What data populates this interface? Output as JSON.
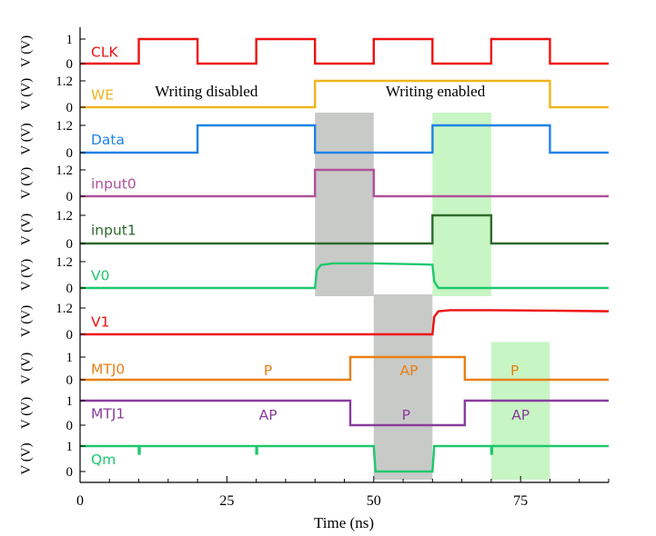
{
  "chart_data": {
    "type": "line",
    "title": "",
    "xlabel": "Time (ns)",
    "ylabel": "V (V)",
    "xlim": [
      0,
      90
    ],
    "x_ticks": [
      0,
      25,
      50,
      75
    ],
    "grid": false,
    "legend": "none",
    "shaded_regions": [
      {
        "name": "gray",
        "color": "#c8cac8",
        "x": [
          40,
          50
        ],
        "rows": [
          "Data",
          "input0",
          "V0"
        ]
      },
      {
        "name": "gray",
        "color": "#c8cac8",
        "x": [
          50,
          60
        ],
        "rows": [
          "V1",
          "MTJ0",
          "MTJ1",
          "Qm"
        ]
      },
      {
        "name": "green",
        "color": "#c8f5c4",
        "x": [
          60,
          70
        ],
        "rows": [
          "Data",
          "input1",
          "V0"
        ]
      },
      {
        "name": "green",
        "color": "#c8f5c4",
        "x": [
          70,
          80
        ],
        "rows": [
          "MTJ0",
          "MTJ1",
          "Qm"
        ]
      }
    ],
    "series": [
      {
        "name": "CLK",
        "color": "#ee1111",
        "ymin": 0,
        "ymax": 1,
        "yticks": [
          "0",
          "1"
        ],
        "points": [
          [
            0,
            0
          ],
          [
            10,
            0
          ],
          [
            10,
            1
          ],
          [
            20,
            1
          ],
          [
            20,
            0
          ],
          [
            30,
            0
          ],
          [
            30,
            1
          ],
          [
            40,
            1
          ],
          [
            40,
            0
          ],
          [
            50,
            0
          ],
          [
            50,
            1
          ],
          [
            60,
            1
          ],
          [
            60,
            0
          ],
          [
            70,
            0
          ],
          [
            70,
            1
          ],
          [
            80,
            1
          ],
          [
            80,
            0
          ],
          [
            90,
            0
          ]
        ],
        "annotations": []
      },
      {
        "name": "WE",
        "color": "#f0b41e",
        "ymin": 0,
        "ymax": 1.2,
        "yticks": [
          "0",
          "1.2"
        ],
        "points": [
          [
            0,
            0
          ],
          [
            40,
            0
          ],
          [
            40,
            1.2
          ],
          [
            80,
            1.2
          ],
          [
            80,
            0
          ],
          [
            90,
            0
          ]
        ],
        "annotations": [
          {
            "text": "Writing disabled",
            "x": 21.5,
            "y": 0.75,
            "color": "#000000",
            "serif": true
          },
          {
            "text": "Writing enabled",
            "x": 60.5,
            "y": 0.75,
            "color": "#000000",
            "serif": true
          }
        ]
      },
      {
        "name": "Data",
        "color": "#1e82e6",
        "ymin": 0,
        "ymax": 1.2,
        "yticks": [
          "0",
          "1.2"
        ],
        "points": [
          [
            0,
            0
          ],
          [
            20,
            0
          ],
          [
            20,
            1.2
          ],
          [
            40,
            1.2
          ],
          [
            40,
            0
          ],
          [
            60,
            0
          ],
          [
            60,
            1.2
          ],
          [
            80,
            1.2
          ],
          [
            80,
            0
          ],
          [
            90,
            0
          ]
        ],
        "annotations": []
      },
      {
        "name": "input0",
        "color": "#b0509a",
        "ymin": 0,
        "ymax": 1.2,
        "yticks": [
          "0",
          "1.2"
        ],
        "points": [
          [
            0,
            0
          ],
          [
            40,
            0
          ],
          [
            40,
            1.2
          ],
          [
            50,
            1.2
          ],
          [
            50,
            0
          ],
          [
            90,
            0
          ]
        ],
        "annotations": []
      },
      {
        "name": "input1",
        "color": "#2e6a2e",
        "ymin": 0,
        "ymax": 1.2,
        "yticks": [
          "0",
          "1.2"
        ],
        "points": [
          [
            0,
            0
          ],
          [
            60,
            0
          ],
          [
            60,
            1.2
          ],
          [
            70,
            1.2
          ],
          [
            70,
            0
          ],
          [
            90,
            0
          ]
        ],
        "annotations": []
      },
      {
        "name": "V0",
        "color": "#1ec86e",
        "ymin": 0,
        "ymax": 1.2,
        "yticks": [
          "0",
          "1.2"
        ],
        "points": [
          [
            0,
            0
          ],
          [
            40,
            0
          ],
          [
            40.3,
            0.8
          ],
          [
            41,
            1.05
          ],
          [
            43,
            1.12
          ],
          [
            50,
            1.12
          ],
          [
            58,
            1.08
          ],
          [
            60,
            1.06
          ],
          [
            60.3,
            0.3
          ],
          [
            61,
            0
          ],
          [
            90,
            0
          ]
        ],
        "annotations": []
      },
      {
        "name": "V1",
        "color": "#ee1111",
        "ymin": 0,
        "ymax": 1.2,
        "yticks": [
          "0",
          "1.2"
        ],
        "points": [
          [
            0,
            0
          ],
          [
            60,
            0
          ],
          [
            60.3,
            0.8
          ],
          [
            61,
            1.05
          ],
          [
            63,
            1.1
          ],
          [
            70,
            1.1
          ],
          [
            80,
            1.08
          ],
          [
            90,
            1.05
          ]
        ],
        "annotations": []
      },
      {
        "name": "MTJ0",
        "color": "#e87f12",
        "ymin": 0,
        "ymax": 1,
        "yticks": [
          "0",
          "1"
        ],
        "points": [
          [
            0,
            0
          ],
          [
            46,
            0
          ],
          [
            46,
            1
          ],
          [
            65.5,
            1
          ],
          [
            65.5,
            0
          ],
          [
            90,
            0
          ]
        ],
        "annotations": [
          {
            "text": "P",
            "x": 32,
            "y": 0.45,
            "color": "#e87f12"
          },
          {
            "text": "AP",
            "x": 56,
            "y": 0.45,
            "color": "#e87f12"
          },
          {
            "text": "P",
            "x": 74,
            "y": 0.45,
            "color": "#e87f12"
          }
        ]
      },
      {
        "name": "MTJ1",
        "color": "#8a3c9e",
        "ymin": 0,
        "ymax": 1,
        "yticks": [
          "0",
          "1"
        ],
        "points": [
          [
            0,
            1
          ],
          [
            46,
            1
          ],
          [
            46,
            0
          ],
          [
            65.5,
            0
          ],
          [
            65.5,
            1
          ],
          [
            90,
            1
          ]
        ],
        "annotations": [
          {
            "text": "AP",
            "x": 32,
            "y": 0.45,
            "color": "#8a3c9e"
          },
          {
            "text": "P",
            "x": 55.5,
            "y": 0.45,
            "color": "#8a3c9e"
          },
          {
            "text": "AP",
            "x": 75,
            "y": 0.45,
            "color": "#8a3c9e"
          }
        ]
      },
      {
        "name": "Qm",
        "color": "#1ec86e",
        "ymin": 0,
        "ymax": 1,
        "yticks": [
          "0",
          "1"
        ],
        "points": [
          [
            0,
            1
          ],
          [
            10,
            1
          ],
          [
            10,
            0.7
          ],
          [
            10.15,
            0.7
          ],
          [
            10.15,
            1
          ],
          [
            30,
            1
          ],
          [
            30,
            0.7
          ],
          [
            30.15,
            0.7
          ],
          [
            30.15,
            1
          ],
          [
            50,
            1
          ],
          [
            50.3,
            0
          ],
          [
            60,
            0
          ],
          [
            60.3,
            1
          ],
          [
            70,
            1
          ],
          [
            70,
            0.7
          ],
          [
            70.15,
            0.7
          ],
          [
            70.15,
            1
          ],
          [
            90,
            1
          ]
        ],
        "annotations": []
      }
    ]
  }
}
